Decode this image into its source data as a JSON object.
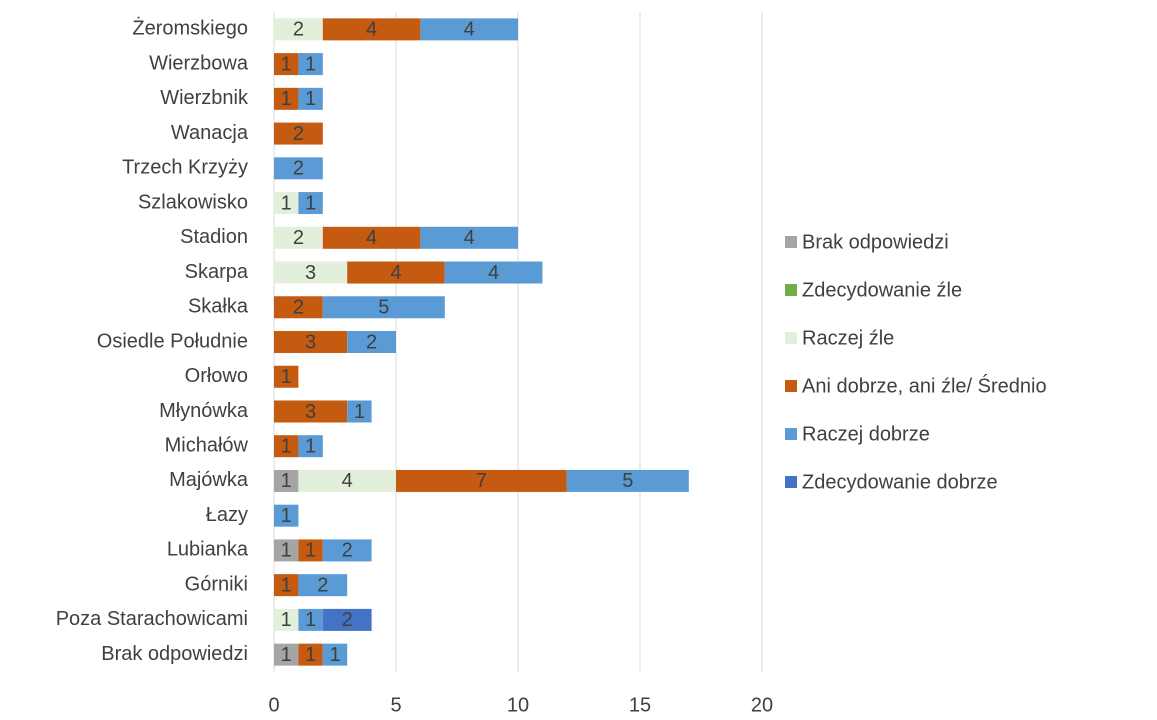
{
  "chart_data": {
    "type": "stacked_bar_horizontal",
    "categories": [
      "Żeromskiego",
      "Wierzbowa",
      "Wierzbnik",
      "Wanacja",
      "Trzech Krzyży",
      "Szlakowisko",
      "Stadion",
      "Skarpa",
      "Skałka",
      "Osiedle Południe",
      "Orłowo",
      "Młynówka",
      "Michałów",
      "Majówka",
      "Łazy",
      "Lubianka",
      "Górniki",
      "Poza Starachowicami",
      "Brak odpowiedzi"
    ],
    "series": [
      {
        "name": "Brak odpowiedzi",
        "color": "#a5a5a5",
        "values": [
          null,
          null,
          null,
          null,
          null,
          null,
          null,
          null,
          null,
          null,
          null,
          null,
          null,
          1,
          null,
          1,
          null,
          null,
          1
        ]
      },
      {
        "name": "Zdecydowanie źle",
        "color": "#70ad47",
        "values": [
          null,
          null,
          null,
          null,
          null,
          null,
          null,
          null,
          null,
          null,
          null,
          null,
          null,
          null,
          null,
          null,
          null,
          null,
          null
        ]
      },
      {
        "name": "Raczej źle",
        "color": "#e2efda",
        "values": [
          2,
          null,
          null,
          null,
          null,
          1,
          2,
          3,
          null,
          null,
          null,
          null,
          null,
          4,
          null,
          null,
          null,
          1,
          null
        ]
      },
      {
        "name": "Ani dobrze, ani źle/ Średnio",
        "color": "#c55a11",
        "values": [
          4,
          1,
          1,
          2,
          null,
          null,
          4,
          4,
          2,
          3,
          1,
          3,
          1,
          7,
          null,
          1,
          1,
          null,
          1
        ]
      },
      {
        "name": "Raczej dobrze",
        "color": "#5b9bd5",
        "values": [
          4,
          1,
          1,
          null,
          2,
          1,
          4,
          4,
          5,
          2,
          null,
          1,
          1,
          5,
          1,
          2,
          2,
          1,
          1
        ]
      },
      {
        "name": "Zdecydowanie dobrze",
        "color": "#4472c4",
        "values": [
          null,
          null,
          null,
          null,
          null,
          null,
          null,
          null,
          null,
          null,
          null,
          null,
          null,
          null,
          null,
          null,
          null,
          2,
          null
        ]
      }
    ],
    "xlim": [
      0,
      20
    ],
    "xticks": [
      0,
      5,
      10,
      15,
      20
    ],
    "grid": true,
    "legend": "right"
  }
}
